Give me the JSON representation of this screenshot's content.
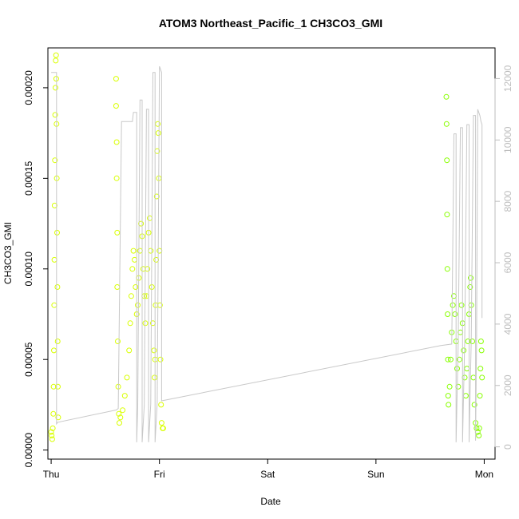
{
  "chart_data": {
    "type": "scatter",
    "title": "ATOM3 Northeast_Pacific_1 CH3CO3_GMI",
    "xlabel": "Date",
    "ylabel": "CH3CO3_GMI",
    "x_ticks": [
      "Thu",
      "Fri",
      "Sat",
      "Sun",
      "Mon"
    ],
    "xlim": [
      -0.03,
      4.1
    ],
    "ylim": [
      -5e-06,
      0.000222
    ],
    "y_ticks": [
      0,
      5e-05,
      0.0001,
      0.00015,
      0.0002
    ],
    "y_tick_labels": [
      "0.00000",
      "0.00005",
      "0.00010",
      "0.00015",
      "0.00020"
    ],
    "y2_lim": [
      -400,
      13000
    ],
    "y2_ticks": [
      0,
      2000,
      4000,
      6000,
      8000,
      10000,
      12000
    ],
    "y2_tick_labels": [
      "0",
      "2000",
      "4000",
      "6000",
      "8000",
      "10000",
      "12000"
    ],
    "grid": false,
    "legend": "none",
    "series": [
      {
        "marker": "circle",
        "color": "#d9ff00",
        "axis": "left",
        "points": [
          [
            0.0,
            1e-05
          ],
          [
            0.005,
            8e-06
          ],
          [
            0.01,
            6e-06
          ],
          [
            0.015,
            1.2e-05
          ],
          [
            0.02,
            2e-05
          ],
          [
            0.022,
            3.5e-05
          ],
          [
            0.025,
            5.5e-05
          ],
          [
            0.028,
            8e-05
          ],
          [
            0.03,
            0.000105
          ],
          [
            0.032,
            0.000135
          ],
          [
            0.035,
            0.00016
          ],
          [
            0.037,
            0.000185
          ],
          [
            0.04,
            0.0002
          ],
          [
            0.042,
            0.000215
          ],
          [
            0.045,
            0.000218
          ],
          [
            0.047,
            0.000205
          ],
          [
            0.05,
            0.00018
          ],
          [
            0.052,
            0.00015
          ],
          [
            0.055,
            0.00012
          ],
          [
            0.058,
            9e-05
          ],
          [
            0.06,
            6e-05
          ],
          [
            0.062,
            3.5e-05
          ],
          [
            0.065,
            1.8e-05
          ],
          [
            0.6,
            0.000205
          ],
          [
            0.6,
            0.00019
          ],
          [
            0.605,
            0.00017
          ],
          [
            0.605,
            0.00015
          ],
          [
            0.61,
            0.00012
          ],
          [
            0.61,
            9e-05
          ],
          [
            0.615,
            6e-05
          ],
          [
            0.62,
            3.5e-05
          ],
          [
            0.625,
            2e-05
          ],
          [
            0.63,
            1.5e-05
          ],
          [
            0.64,
            1.8e-05
          ],
          [
            0.66,
            2.2e-05
          ],
          [
            0.68,
            3e-05
          ],
          [
            0.7,
            4e-05
          ],
          [
            0.72,
            5.5e-05
          ],
          [
            0.73,
            7e-05
          ],
          [
            0.74,
            8.5e-05
          ],
          [
            0.75,
            0.0001
          ],
          [
            0.76,
            0.00011
          ],
          [
            0.77,
            0.000105
          ],
          [
            0.78,
            9e-05
          ],
          [
            0.79,
            7.5e-05
          ],
          [
            0.8,
            8e-05
          ],
          [
            0.81,
            9.5e-05
          ],
          [
            0.82,
            0.00011
          ],
          [
            0.83,
            0.000125
          ],
          [
            0.84,
            0.000118
          ],
          [
            0.85,
            0.0001
          ],
          [
            0.86,
            8.5e-05
          ],
          [
            0.87,
            7e-05
          ],
          [
            0.88,
            8.5e-05
          ],
          [
            0.89,
            0.0001
          ],
          [
            0.9,
            0.00012
          ],
          [
            0.91,
            0.000128
          ],
          [
            0.92,
            0.00011
          ],
          [
            0.93,
            9e-05
          ],
          [
            0.94,
            7e-05
          ],
          [
            0.95,
            5.5e-05
          ],
          [
            0.955,
            4e-05
          ],
          [
            0.96,
            5e-05
          ],
          [
            0.965,
            8e-05
          ],
          [
            0.97,
            0.000105
          ],
          [
            0.975,
            0.00014
          ],
          [
            0.98,
            0.000165
          ],
          [
            0.985,
            0.00018
          ],
          [
            0.99,
            0.000175
          ],
          [
            0.995,
            0.00015
          ],
          [
            1.0,
            0.00011
          ],
          [
            1.005,
            8e-05
          ],
          [
            1.01,
            5e-05
          ],
          [
            1.015,
            2.5e-05
          ],
          [
            1.02,
            1.5e-05
          ],
          [
            1.03,
            1.2e-05
          ],
          [
            1.035,
            1.2e-05
          ]
        ]
      },
      {
        "marker": "circle",
        "color": "#88ff00",
        "axis": "left",
        "points": [
          [
            3.65,
            0.000195
          ],
          [
            3.652,
            0.00018
          ],
          [
            3.655,
            0.00016
          ],
          [
            3.657,
            0.00013
          ],
          [
            3.66,
            0.0001
          ],
          [
            3.662,
            7.5e-05
          ],
          [
            3.665,
            5e-05
          ],
          [
            3.667,
            3e-05
          ],
          [
            3.67,
            2.5e-05
          ],
          [
            3.68,
            3.5e-05
          ],
          [
            3.69,
            5e-05
          ],
          [
            3.7,
            6.5e-05
          ],
          [
            3.71,
            8e-05
          ],
          [
            3.72,
            8.5e-05
          ],
          [
            3.73,
            7.5e-05
          ],
          [
            3.74,
            6e-05
          ],
          [
            3.75,
            4.5e-05
          ],
          [
            3.76,
            3.5e-05
          ],
          [
            3.77,
            5e-05
          ],
          [
            3.78,
            6.5e-05
          ],
          [
            3.79,
            8e-05
          ],
          [
            3.8,
            7e-05
          ],
          [
            3.81,
            5.5e-05
          ],
          [
            3.82,
            4e-05
          ],
          [
            3.83,
            3e-05
          ],
          [
            3.84,
            4.5e-05
          ],
          [
            3.85,
            6e-05
          ],
          [
            3.86,
            7.5e-05
          ],
          [
            3.87,
            9e-05
          ],
          [
            3.875,
            9.5e-05
          ],
          [
            3.88,
            8e-05
          ],
          [
            3.89,
            6e-05
          ],
          [
            3.9,
            4e-05
          ],
          [
            3.91,
            2.5e-05
          ],
          [
            3.92,
            1.5e-05
          ],
          [
            3.93,
            1.2e-05
          ],
          [
            3.94,
            1e-05
          ],
          [
            3.95,
            8e-06
          ],
          [
            3.955,
            1.2e-05
          ],
          [
            3.96,
            3e-05
          ],
          [
            3.965,
            4.5e-05
          ],
          [
            3.97,
            6e-05
          ],
          [
            3.975,
            5.5e-05
          ],
          [
            3.98,
            4e-05
          ]
        ]
      },
      {
        "marker": "line",
        "color": "#c8c8c8",
        "axis": "right",
        "points": [
          [
            0.0,
            12200
          ],
          [
            0.05,
            12200
          ],
          [
            0.05,
            750
          ],
          [
            0.06,
            800
          ],
          [
            0.6,
            1200
          ],
          [
            0.62,
            1250
          ],
          [
            0.65,
            10600
          ],
          [
            0.75,
            10600
          ],
          [
            0.76,
            10900
          ],
          [
            0.79,
            10900
          ],
          [
            0.79,
            150
          ],
          [
            0.8,
            1300
          ],
          [
            0.82,
            11300
          ],
          [
            0.84,
            11300
          ],
          [
            0.84,
            150
          ],
          [
            0.86,
            1350
          ],
          [
            0.88,
            11000
          ],
          [
            0.9,
            11000
          ],
          [
            0.9,
            150
          ],
          [
            0.92,
            1400
          ],
          [
            0.94,
            12200
          ],
          [
            0.96,
            12200
          ],
          [
            0.96,
            150
          ],
          [
            0.98,
            1450
          ],
          [
            1.0,
            12400
          ],
          [
            1.02,
            12200
          ],
          [
            1.02,
            1500
          ],
          [
            3.6,
            3300
          ],
          [
            3.7,
            3350
          ],
          [
            3.72,
            10200
          ],
          [
            3.74,
            10200
          ],
          [
            3.74,
            150
          ],
          [
            3.76,
            3400
          ],
          [
            3.78,
            10400
          ],
          [
            3.8,
            10400
          ],
          [
            3.8,
            150
          ],
          [
            3.82,
            3450
          ],
          [
            3.84,
            10500
          ],
          [
            3.86,
            10500
          ],
          [
            3.86,
            150
          ],
          [
            3.88,
            3500
          ],
          [
            3.9,
            10800
          ],
          [
            3.92,
            10800
          ],
          [
            3.92,
            200
          ],
          [
            3.93,
            3550
          ],
          [
            3.94,
            11000
          ],
          [
            3.96,
            10800
          ],
          [
            3.97,
            10600
          ],
          [
            3.98,
            10500
          ],
          [
            3.98,
            4200
          ]
        ]
      }
    ]
  }
}
